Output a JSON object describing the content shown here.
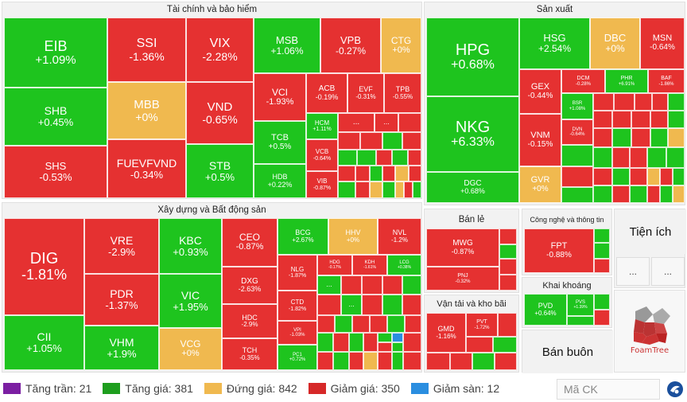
{
  "sectors": {
    "finance": "Tài chính và bảo hiểm",
    "manufacturing": "Sản xuất",
    "construction": "Xây dựng và Bất động sản",
    "retail": "Bán lẻ",
    "tech": "Công nghệ và thông tin",
    "utilities": "Tiện ích",
    "mining": "Khai khoáng",
    "transport": "Vận tải và kho bãi",
    "wholesale": "Bán buôn"
  },
  "tiles": {
    "EIB": {
      "ticker": "EIB",
      "change": "+1.09%"
    },
    "SHB": {
      "ticker": "SHB",
      "change": "+0.45%"
    },
    "SHS": {
      "ticker": "SHS",
      "change": "-0.53%"
    },
    "SSI": {
      "ticker": "SSI",
      "change": "-1.36%"
    },
    "MBB": {
      "ticker": "MBB",
      "change": "+0%"
    },
    "FUEVFVND": {
      "ticker": "FUEVFVND",
      "change": "-0.34%"
    },
    "VIX": {
      "ticker": "VIX",
      "change": "-2.28%"
    },
    "VND": {
      "ticker": "VND",
      "change": "-0.65%"
    },
    "STB": {
      "ticker": "STB",
      "change": "+0.5%"
    },
    "MSB": {
      "ticker": "MSB",
      "change": "+1.06%"
    },
    "VPB": {
      "ticker": "VPB",
      "change": "-0.27%"
    },
    "CTG": {
      "ticker": "CTG",
      "change": "+0%"
    },
    "VCI": {
      "ticker": "VCI",
      "change": "-1.93%"
    },
    "ACB": {
      "ticker": "ACB",
      "change": "-0.19%"
    },
    "EVF": {
      "ticker": "EVF",
      "change": "-0.31%"
    },
    "TPB": {
      "ticker": "TPB",
      "change": "-0.55%"
    },
    "TCB": {
      "ticker": "TCB",
      "change": "+0.5%"
    },
    "HCM": {
      "ticker": "HCM",
      "change": "+1.11%"
    },
    "HDB": {
      "ticker": "HDB",
      "change": "+0.22%"
    },
    "VCB": {
      "ticker": "VCB",
      "change": "-0.64%"
    },
    "VIB": {
      "ticker": "VIB",
      "change": "-0.87%"
    },
    "HPG": {
      "ticker": "HPG",
      "change": "+0.68%"
    },
    "NKG": {
      "ticker": "NKG",
      "change": "+6.33%"
    },
    "DGC": {
      "ticker": "DGC",
      "change": "+0.68%"
    },
    "HSG": {
      "ticker": "HSG",
      "change": "+2.54%"
    },
    "DBC": {
      "ticker": "DBC",
      "change": "+0%"
    },
    "MSN": {
      "ticker": "MSN",
      "change": "-0.64%"
    },
    "GEX": {
      "ticker": "GEX",
      "change": "-0.44%"
    },
    "DCM": {
      "ticker": "DCM",
      "change": "-0.28%"
    },
    "PHR": {
      "ticker": "PHR",
      "change": "+6.91%"
    },
    "BAF": {
      "ticker": "BAF",
      "change": "-1.86%"
    },
    "BSR": {
      "ticker": "BSR",
      "change": "+1.08%"
    },
    "VNM": {
      "ticker": "VNM",
      "change": "-0.15%"
    },
    "DVN": {
      "ticker": "DVN",
      "change": "-0.64%"
    },
    "GVR": {
      "ticker": "GVR",
      "change": "+0%"
    },
    "DIG": {
      "ticker": "DIG",
      "change": "-1.81%"
    },
    "CII": {
      "ticker": "CII",
      "change": "+1.05%"
    },
    "VRE": {
      "ticker": "VRE",
      "change": "-2.9%"
    },
    "PDR": {
      "ticker": "PDR",
      "change": "-1.37%"
    },
    "VHM": {
      "ticker": "VHM",
      "change": "+1.9%"
    },
    "KBC": {
      "ticker": "KBC",
      "change": "+0.93%"
    },
    "VIC": {
      "ticker": "VIC",
      "change": "+1.95%"
    },
    "VCG": {
      "ticker": "VCG",
      "change": "+0%"
    },
    "CEO": {
      "ticker": "CEO",
      "change": "-0.87%"
    },
    "DXG": {
      "ticker": "DXG",
      "change": "-2.63%"
    },
    "HDC": {
      "ticker": "HDC",
      "change": "-2.9%"
    },
    "TCH": {
      "ticker": "TCH",
      "change": "-0.35%"
    },
    "BCG": {
      "ticker": "BCG",
      "change": "+2.67%"
    },
    "HHV": {
      "ticker": "HHV",
      "change": "+0%"
    },
    "NVL": {
      "ticker": "NVL",
      "change": "-1.2%"
    },
    "NLG": {
      "ticker": "NLG",
      "change": "-1.87%"
    },
    "HDG": {
      "ticker": "HDG",
      "change": "-0.17%"
    },
    "KDH": {
      "ticker": "KDH",
      "change": "-1.61%"
    },
    "LCG": {
      "ticker": "LCG",
      "change": "+0.38%"
    },
    "CTD": {
      "ticker": "CTD",
      "change": "-1.82%"
    },
    "VPI": {
      "ticker": "VPI",
      "change": "-1.03%"
    },
    "PC1": {
      "ticker": "PC1",
      "change": "+0.72%"
    },
    "MWG": {
      "ticker": "MWG",
      "change": "-0.87%"
    },
    "PNJ": {
      "ticker": "PNJ",
      "change": "-0.32%"
    },
    "FPT": {
      "ticker": "FPT",
      "change": "-0.88%"
    },
    "PVD": {
      "ticker": "PVD",
      "change": "+0.64%"
    },
    "PVS": {
      "ticker": "PVS",
      "change": "+1.39%"
    },
    "GMD": {
      "ticker": "GMD",
      "change": "-1.16%"
    },
    "PVT": {
      "ticker": "PVT",
      "change": "-1.72%"
    }
  },
  "more": "...",
  "logo_text": "FoamTree",
  "legend": {
    "ceiling": {
      "label": "Tăng trần: 21",
      "color": "#7b1fa2"
    },
    "up": {
      "label": "Tăng giá: 381",
      "color": "#1e9e1e"
    },
    "flat": {
      "label": "Đứng giá: 842",
      "color": "#f0b94f"
    },
    "down": {
      "label": "Giảm giá: 350",
      "color": "#d62828"
    },
    "floor": {
      "label": "Giảm sàn: 12",
      "color": "#2a8ee0"
    }
  },
  "search": {
    "placeholder": "Mã CK"
  },
  "colors": {
    "up": "#1ec41e",
    "down": "#e53131",
    "flat": "#f0b94f"
  }
}
